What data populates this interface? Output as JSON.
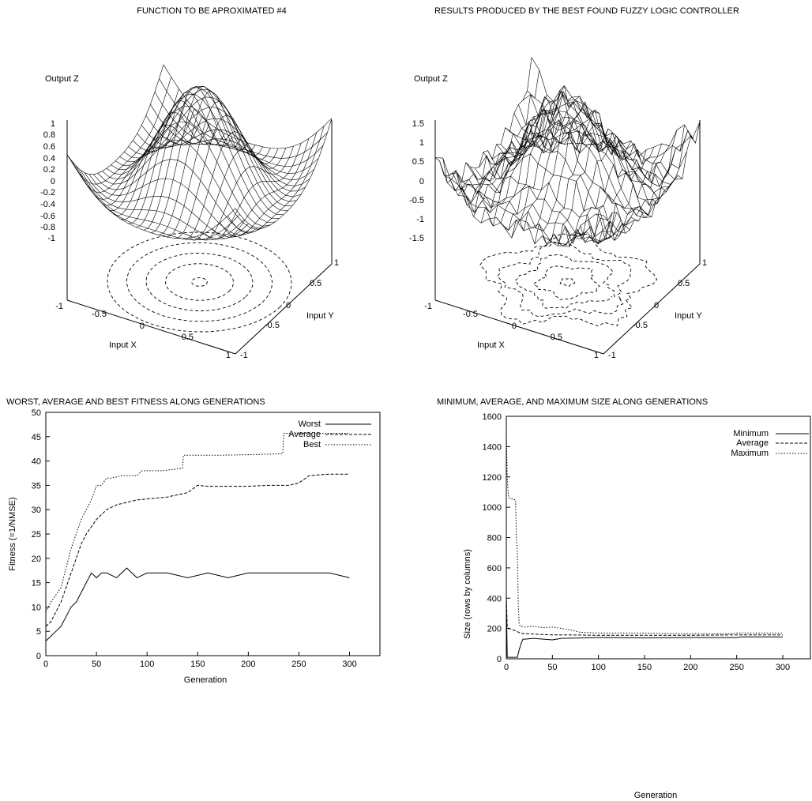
{
  "chart_data": [
    {
      "type": "surface",
      "title": "FUNCTION TO BE APROXIMATED #4",
      "zlabel": "Output Z",
      "xlabel": "Input X",
      "ylabel": "Input Y",
      "z_ticks": [
        "1",
        "0.8",
        "0.6",
        "0.4",
        "0.2",
        "0",
        "-0.2",
        "-0.4",
        "-0.6",
        "-0.8",
        "-1"
      ],
      "x_ticks": [
        "-1",
        "-0.5",
        "0",
        "0.5",
        "1"
      ],
      "y_ticks": [
        "-1",
        "-0.5",
        "0",
        "0.5",
        "1"
      ],
      "xlim": [
        -1,
        1
      ],
      "ylim": [
        -1,
        1
      ],
      "zlim": [
        -1,
        1
      ],
      "contour_base": true
    },
    {
      "type": "surface",
      "title": "RESULTS PRODUCED BY THE BEST FOUND FUZZY LOGIC CONTROLLER",
      "zlabel": "Output Z",
      "xlabel": "Input X",
      "ylabel": "Input Y",
      "z_ticks": [
        "1.5",
        "1",
        "0.5",
        "0",
        "-0.5",
        "-1",
        "-1.5"
      ],
      "x_ticks": [
        "-1",
        "-0.5",
        "0",
        "0.5",
        "1"
      ],
      "y_ticks": [
        "-1",
        "-0.5",
        "0",
        "0.5",
        "1"
      ],
      "xlim": [
        -1,
        1
      ],
      "ylim": [
        -1,
        1
      ],
      "zlim": [
        -1.5,
        1.5
      ],
      "contour_base": true
    },
    {
      "type": "line",
      "title": "WORST, AVERAGE AND BEST FITNESS ALONG GENERATIONS",
      "xlabel": "Generation",
      "ylabel": "Fitness (=1/NMSE)",
      "xlim": [
        0,
        330
      ],
      "ylim": [
        0,
        50
      ],
      "x_ticks": [
        "0",
        "50",
        "100",
        "150",
        "200",
        "250",
        "300"
      ],
      "y_ticks": [
        "0",
        "5",
        "10",
        "15",
        "20",
        "25",
        "30",
        "35",
        "40",
        "45",
        "50"
      ],
      "legend_position": "top-right",
      "series": [
        {
          "name": "Worst",
          "style": "solid",
          "x": [
            0,
            5,
            10,
            15,
            20,
            25,
            30,
            35,
            40,
            45,
            50,
            55,
            60,
            70,
            80,
            90,
            100,
            120,
            140,
            160,
            180,
            200,
            220,
            240,
            260,
            280,
            300
          ],
          "y": [
            3,
            4,
            5,
            6,
            8,
            10,
            11,
            13,
            15,
            17,
            16,
            17,
            17,
            16,
            18,
            16,
            17,
            17,
            16,
            17,
            16,
            17,
            17,
            17,
            17,
            17,
            16
          ]
        },
        {
          "name": "Average",
          "style": "dashed",
          "x": [
            0,
            5,
            10,
            15,
            20,
            25,
            30,
            35,
            40,
            45,
            50,
            55,
            60,
            70,
            80,
            90,
            100,
            120,
            140,
            150,
            160,
            180,
            200,
            220,
            240,
            250,
            260,
            280,
            300
          ],
          "y": [
            6,
            7,
            9,
            11,
            14,
            17,
            20,
            23,
            25,
            26.5,
            28,
            29,
            30,
            31,
            31.5,
            32,
            32.2,
            32.6,
            33.5,
            35,
            34.8,
            34.8,
            34.8,
            35,
            35,
            35.5,
            37,
            37.3,
            37.3
          ]
        },
        {
          "name": "Best",
          "style": "dotted",
          "x": [
            0,
            5,
            10,
            15,
            20,
            25,
            30,
            35,
            40,
            45,
            50,
            55,
            60,
            65,
            75,
            90,
            95,
            115,
            135,
            136,
            150,
            175,
            200,
            234,
            235,
            260,
            300
          ],
          "y": [
            9,
            11,
            12.5,
            14,
            18,
            22,
            25,
            28,
            30,
            32,
            35,
            35,
            36.5,
            36.5,
            37,
            37,
            38,
            38,
            38.5,
            41.2,
            41.2,
            41.2,
            41.3,
            41.5,
            45.7,
            45.7,
            45.7
          ]
        }
      ]
    },
    {
      "type": "line",
      "title": "MINIMUM, AVERAGE, AND MAXIMUM SIZE ALONG GENERATIONS",
      "xlabel": "Generation",
      "ylabel": "Size (rows by columns)",
      "xlim": [
        0,
        330
      ],
      "ylim": [
        0,
        1600
      ],
      "x_ticks": [
        "0",
        "50",
        "100",
        "150",
        "200",
        "250",
        "300"
      ],
      "y_ticks": [
        "0",
        "200",
        "400",
        "600",
        "800",
        "1000",
        "1200",
        "1400",
        "1600"
      ],
      "legend_position": "top-right",
      "series": [
        {
          "name": "Minimum",
          "style": "solid",
          "x": [
            0,
            1,
            2,
            3,
            5,
            10,
            12,
            14,
            16,
            18,
            20,
            30,
            40,
            50,
            60,
            100,
            150,
            200,
            250,
            255,
            300
          ],
          "y": [
            400,
            10,
            10,
            10,
            10,
            10,
            10,
            60,
            100,
            130,
            130,
            135,
            130,
            125,
            135,
            140,
            138,
            140,
            140,
            145,
            145
          ]
        },
        {
          "name": "Average",
          "style": "dashed",
          "x": [
            0,
            1,
            2,
            5,
            10,
            15,
            20,
            25,
            30,
            40,
            50,
            60,
            80,
            100,
            150,
            200,
            250,
            300
          ],
          "y": [
            420,
            210,
            205,
            195,
            185,
            170,
            165,
            165,
            163,
            160,
            158,
            158,
            157,
            155,
            155,
            155,
            158,
            158
          ]
        },
        {
          "name": "Maximum",
          "style": "dotted",
          "x": [
            0,
            1,
            2,
            3,
            5,
            7,
            8,
            10,
            11,
            12,
            13,
            14,
            15,
            20,
            30,
            40,
            50,
            60,
            70,
            80,
            100,
            150,
            200,
            240,
            250,
            300
          ],
          "y": [
            1480,
            1200,
            1100,
            1060,
            1060,
            1050,
            1050,
            1050,
            800,
            700,
            350,
            230,
            215,
            210,
            215,
            205,
            210,
            200,
            190,
            175,
            170,
            170,
            165,
            165,
            170,
            170
          ]
        }
      ]
    }
  ]
}
